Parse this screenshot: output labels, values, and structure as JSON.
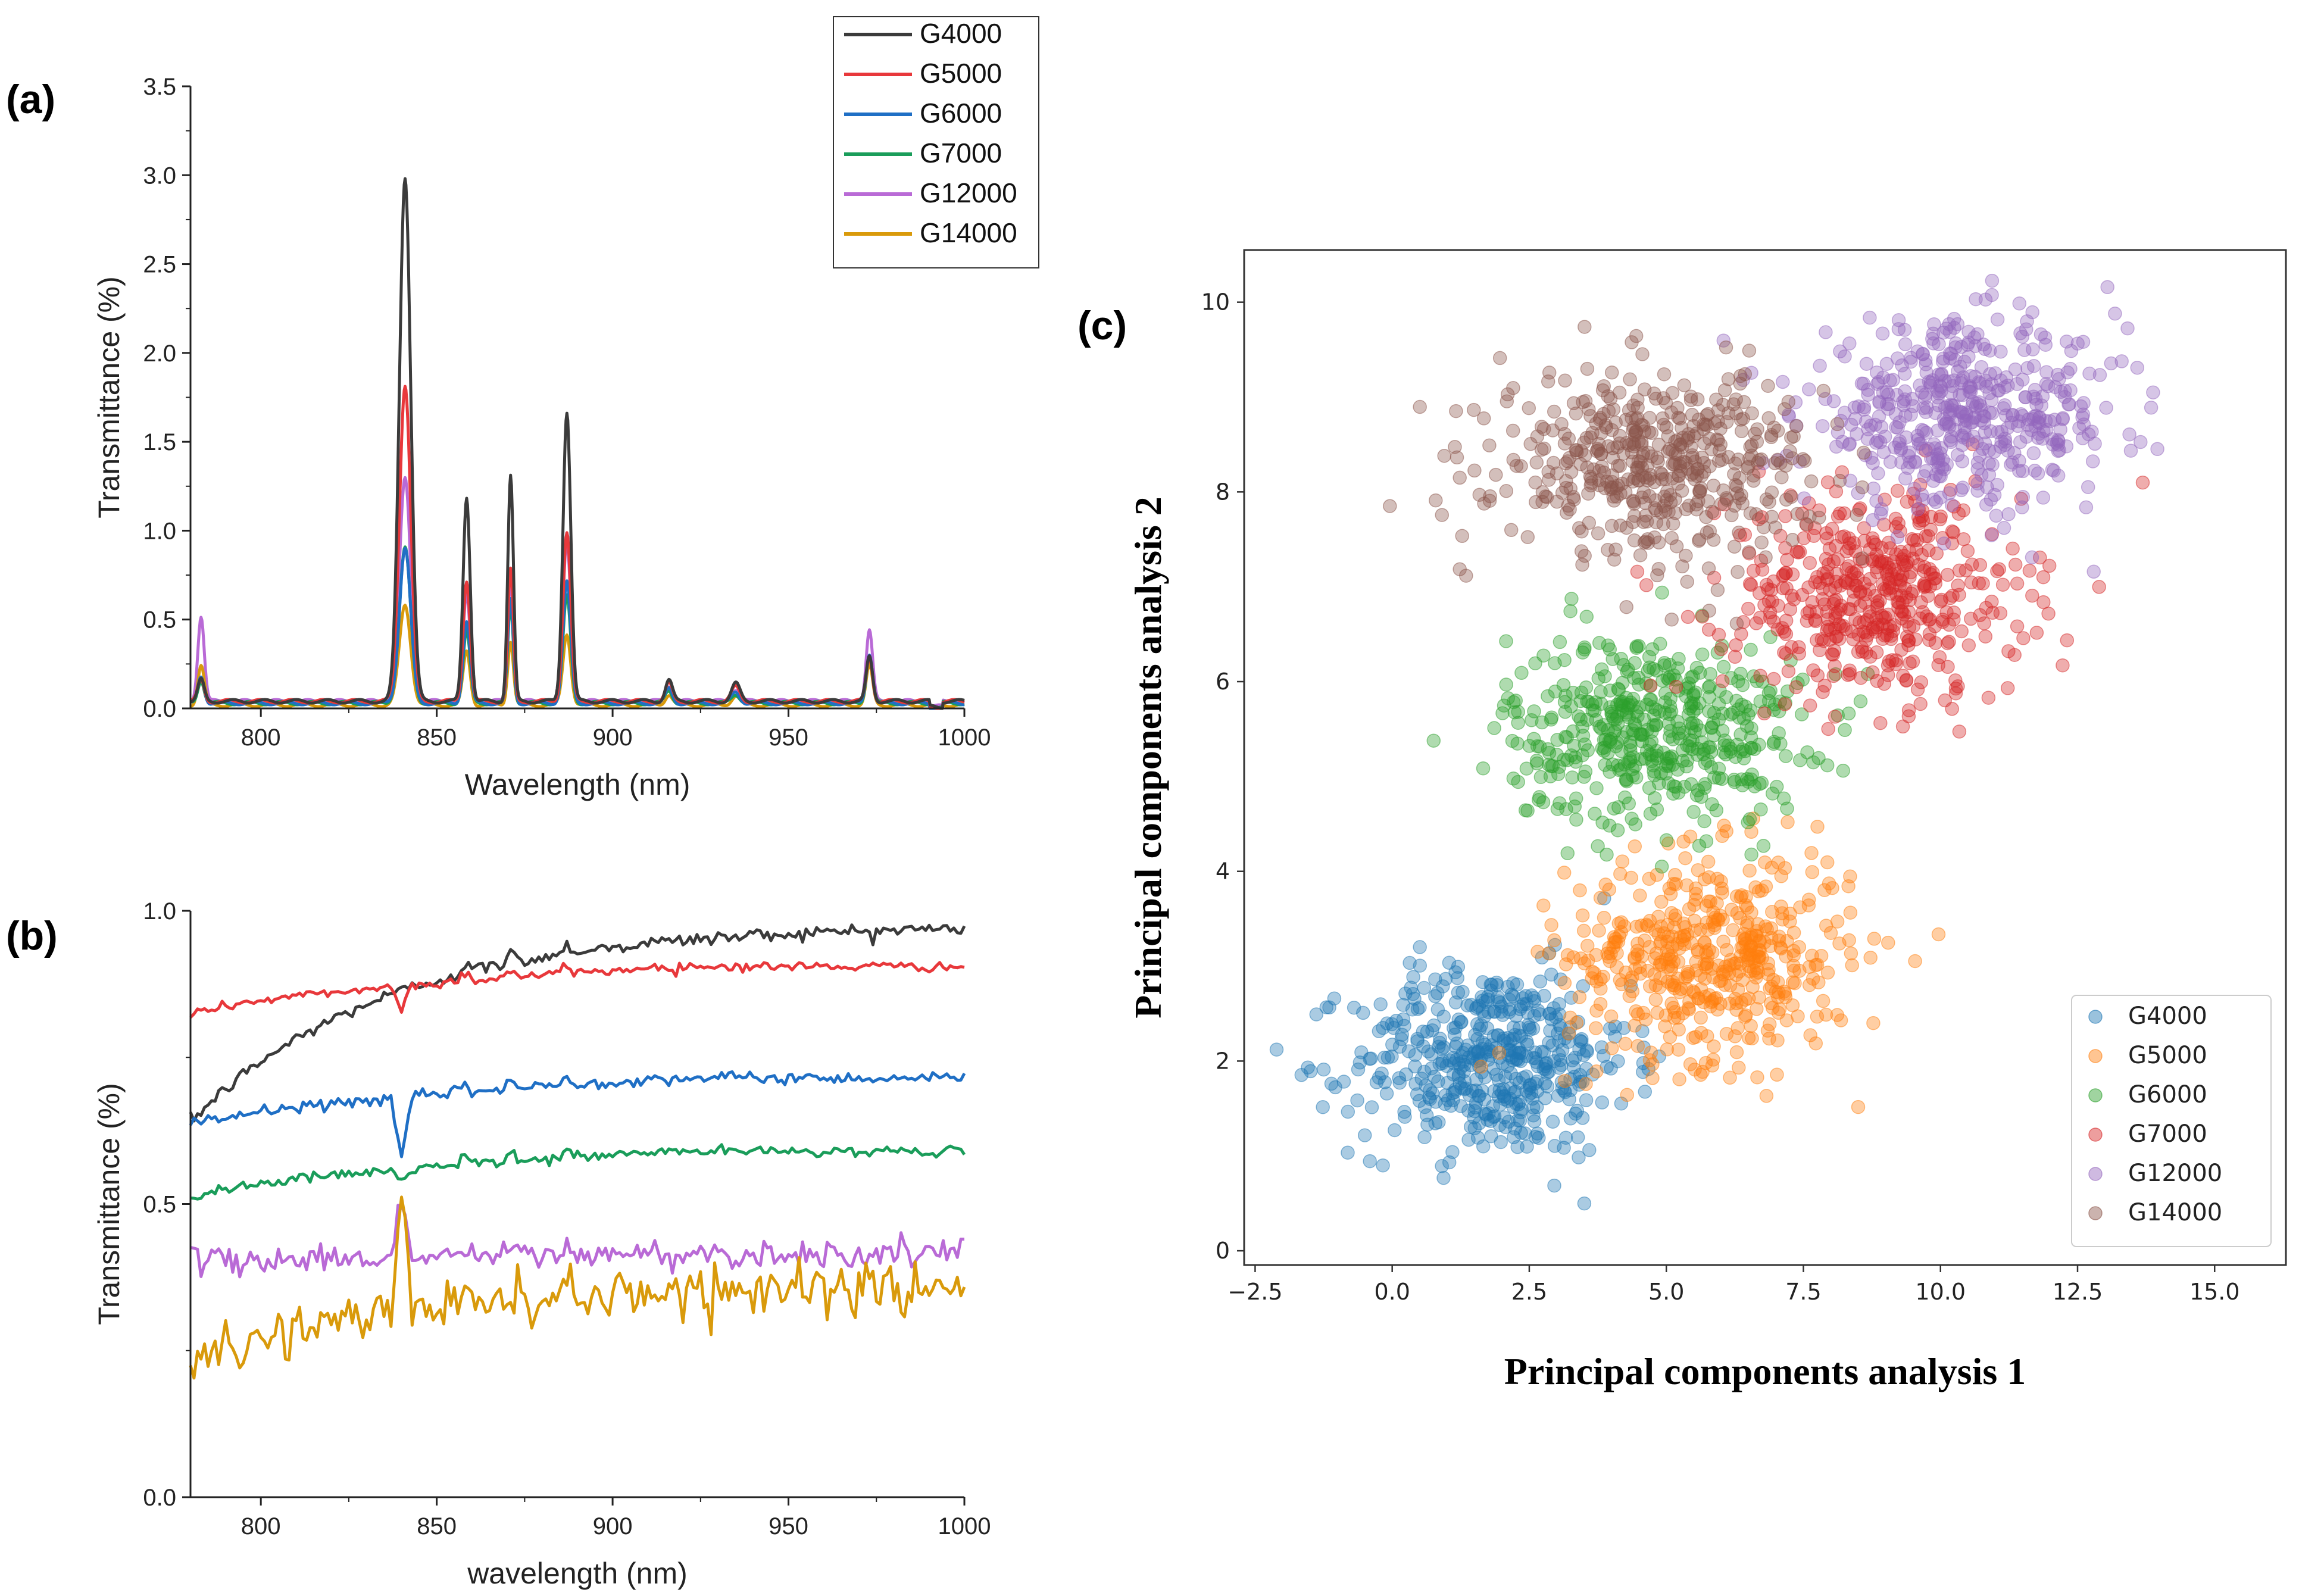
{
  "panel_labels": [
    "(a)",
    "(b)",
    "(c)"
  ],
  "chart_data": [
    {
      "id": "a",
      "type": "line",
      "xlabel": "Wavelength (nm)",
      "ylabel": "Transmittance (%)",
      "xlim": [
        780,
        1000
      ],
      "ylim": [
        0,
        3.5
      ],
      "xticks": [
        800,
        850,
        900,
        950,
        1000
      ],
      "yticks": [
        0.0,
        0.5,
        1.0,
        1.5,
        2.0,
        2.5,
        3.0,
        3.5
      ],
      "xtick_labels": [
        "800",
        "850",
        "900",
        "950",
        "1000"
      ],
      "ytick_labels": [
        "0.0",
        "0.5",
        "1.0",
        "1.5",
        "2.0",
        "2.5",
        "3.0",
        "3.5"
      ],
      "grid": false,
      "legend": "top-right outside",
      "base_peaks": [
        {
          "x": 783,
          "w": 0.9
        },
        {
          "x": 841,
          "w": 1.6
        },
        {
          "x": 858.5,
          "w": 1.0
        },
        {
          "x": 871,
          "w": 0.8
        },
        {
          "x": 887,
          "w": 1.1
        },
        {
          "x": 916,
          "w": 1.0
        },
        {
          "x": 935,
          "w": 1.2
        },
        {
          "x": 973,
          "w": 0.9
        }
      ],
      "series": [
        {
          "name": "G4000",
          "color": "#3b3b3b",
          "peak_heights": [
            0.12,
            2.95,
            1.15,
            1.27,
            1.63,
            0.12,
            0.1,
            0.25
          ],
          "baseline": 0.04
        },
        {
          "name": "G5000",
          "color": "#e8383b",
          "peak_heights": [
            0.12,
            1.78,
            0.68,
            0.74,
            0.95,
            0.1,
            0.08,
            0.25
          ],
          "baseline": 0.04
        },
        {
          "name": "G6000",
          "color": "#1f6fc5",
          "peak_heights": [
            0.15,
            0.87,
            0.46,
            0.58,
            0.68,
            0.08,
            0.06,
            0.28
          ],
          "baseline": 0.03
        },
        {
          "name": "G7000",
          "color": "#1a9d5a",
          "peak_heights": [
            0.13,
            0.87,
            0.4,
            0.55,
            0.6,
            0.07,
            0.05,
            0.27
          ],
          "baseline": 0.03
        },
        {
          "name": "G12000",
          "color": "#b96ad6",
          "peak_heights": [
            0.48,
            1.25,
            0.6,
            0.7,
            0.9,
            0.09,
            0.07,
            0.4
          ],
          "baseline": 0.04
        },
        {
          "name": "G14000",
          "color": "#d99a0b",
          "peak_heights": [
            0.22,
            0.56,
            0.3,
            0.36,
            0.4,
            0.06,
            0.05,
            0.22
          ],
          "baseline": 0.02
        }
      ]
    },
    {
      "id": "b",
      "type": "line",
      "xlabel": "wavelength (nm)",
      "ylabel": "Transmittance (%)",
      "xlim": [
        780,
        1000
      ],
      "ylim": [
        0,
        1.0
      ],
      "xticks": [
        800,
        850,
        900,
        950,
        1000
      ],
      "yticks": [
        0.0,
        0.5,
        1.0
      ],
      "xtick_labels": [
        "800",
        "850",
        "900",
        "950",
        "1000"
      ],
      "ytick_labels": [
        "0.0",
        "0.5",
        "1.0"
      ],
      "grid": false,
      "series": [
        {
          "name": "G4000",
          "color": "#3b3b3b",
          "start": 0.64,
          "end": 0.97,
          "shape": "rise",
          "noise": 0.006,
          "dip": 0.0
        },
        {
          "name": "G5000",
          "color": "#e8383b",
          "start": 0.82,
          "end": 0.905,
          "shape": "flat",
          "noise": 0.004,
          "dip": -0.04
        },
        {
          "name": "G6000",
          "color": "#1f6fc5",
          "start": 0.63,
          "end": 0.715,
          "shape": "flat",
          "noise": 0.005,
          "dip": -0.11
        },
        {
          "name": "G7000",
          "color": "#1a9d5a",
          "start": 0.51,
          "end": 0.59,
          "shape": "flat",
          "noise": 0.004,
          "dip": -0.02
        },
        {
          "name": "G12000",
          "color": "#b96ad6",
          "start": 0.4,
          "end": 0.415,
          "shape": "flat",
          "noise": 0.012,
          "dip": 0.1
        },
        {
          "name": "G14000",
          "color": "#d99a0b",
          "start": 0.23,
          "end": 0.36,
          "shape": "rise",
          "noise": 0.018,
          "dip": 0.21
        }
      ]
    },
    {
      "id": "c",
      "type": "scatter",
      "xlabel": "Principal components analysis 1",
      "ylabel": "Principal components analysis 2",
      "xlim": [
        -2.7,
        16.3
      ],
      "ylim": [
        -0.15,
        10.55
      ],
      "xticks": [
        -2.5,
        0.0,
        2.5,
        5.0,
        7.5,
        10.0,
        12.5,
        15.0
      ],
      "yticks": [
        0,
        2,
        4,
        6,
        8,
        10
      ],
      "xtick_labels": [
        "−2.5",
        "0.0",
        "2.5",
        "5.0",
        "7.5",
        "10.0",
        "12.5",
        "15.0"
      ],
      "ytick_labels": [
        "0",
        "2",
        "4",
        "6",
        "8",
        "10"
      ],
      "grid": false,
      "legend": "bottom-right",
      "series": [
        {
          "name": "G4000",
          "color": "#1f77b4",
          "center": [
            1.8,
            2.0
          ],
          "spread": [
            1.25,
            0.5
          ],
          "n": 480
        },
        {
          "name": "G5000",
          "color": "#ff7f0e",
          "center": [
            5.8,
            3.1
          ],
          "spread": [
            1.3,
            0.55
          ],
          "n": 480
        },
        {
          "name": "G6000",
          "color": "#2ca02c",
          "center": [
            4.8,
            5.5
          ],
          "spread": [
            1.35,
            0.5
          ],
          "n": 480
        },
        {
          "name": "G7000",
          "color": "#d62728",
          "center": [
            8.8,
            6.9
          ],
          "spread": [
            1.35,
            0.55
          ],
          "n": 480
        },
        {
          "name": "G12000",
          "color": "#9467bd",
          "center": [
            10.4,
            8.8
          ],
          "spread": [
            1.45,
            0.48
          ],
          "n": 480
        },
        {
          "name": "G14000",
          "color": "#8c564b",
          "center": [
            4.8,
            8.3
          ],
          "spread": [
            1.45,
            0.48
          ],
          "n": 480
        }
      ]
    }
  ]
}
